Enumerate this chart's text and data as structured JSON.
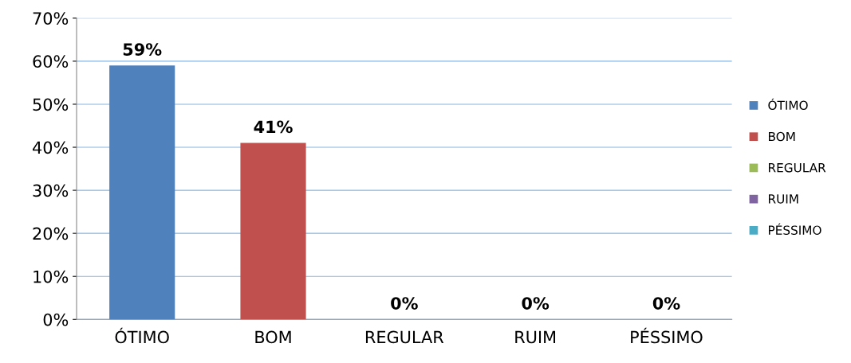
{
  "chart_data": {
    "type": "bar",
    "categories": [
      "ÓTIMO",
      "BOM",
      "REGULAR",
      "RUIM",
      "PÉSSIMO"
    ],
    "series": [
      {
        "name": "ÓTIMO",
        "color": "#4f81bd",
        "values": [
          59,
          null,
          null,
          null,
          null
        ],
        "value_labels": [
          "59%",
          null,
          null,
          null,
          null
        ]
      },
      {
        "name": "BOM",
        "color": "#c0504d",
        "values": [
          null,
          41,
          null,
          null,
          null
        ],
        "value_labels": [
          null,
          "41%",
          null,
          null,
          null
        ]
      },
      {
        "name": "REGULAR",
        "color": "#9bbb59",
        "values": [
          null,
          null,
          0,
          null,
          null
        ],
        "value_labels": [
          null,
          null,
          "0%",
          null,
          null
        ]
      },
      {
        "name": "RUIM",
        "color": "#8064a2",
        "values": [
          null,
          null,
          null,
          0,
          null
        ],
        "value_labels": [
          null,
          null,
          null,
          "0%",
          null
        ]
      },
      {
        "name": "PÉSSIMO",
        "color": "#4bacc6",
        "values": [
          null,
          null,
          null,
          null,
          0
        ],
        "value_labels": [
          null,
          null,
          null,
          null,
          "0%"
        ]
      }
    ],
    "ylim": [
      0,
      70
    ],
    "yticks": [
      {
        "value": 0,
        "label": "0%"
      },
      {
        "value": 10,
        "label": "10%"
      },
      {
        "value": 20,
        "label": "20%"
      },
      {
        "value": 30,
        "label": "30%"
      },
      {
        "value": 40,
        "label": "40%"
      },
      {
        "value": 50,
        "label": "50%"
      },
      {
        "value": 60,
        "label": "60%"
      },
      {
        "value": 70,
        "label": "70%"
      }
    ],
    "grid": "y",
    "legend": "right"
  }
}
